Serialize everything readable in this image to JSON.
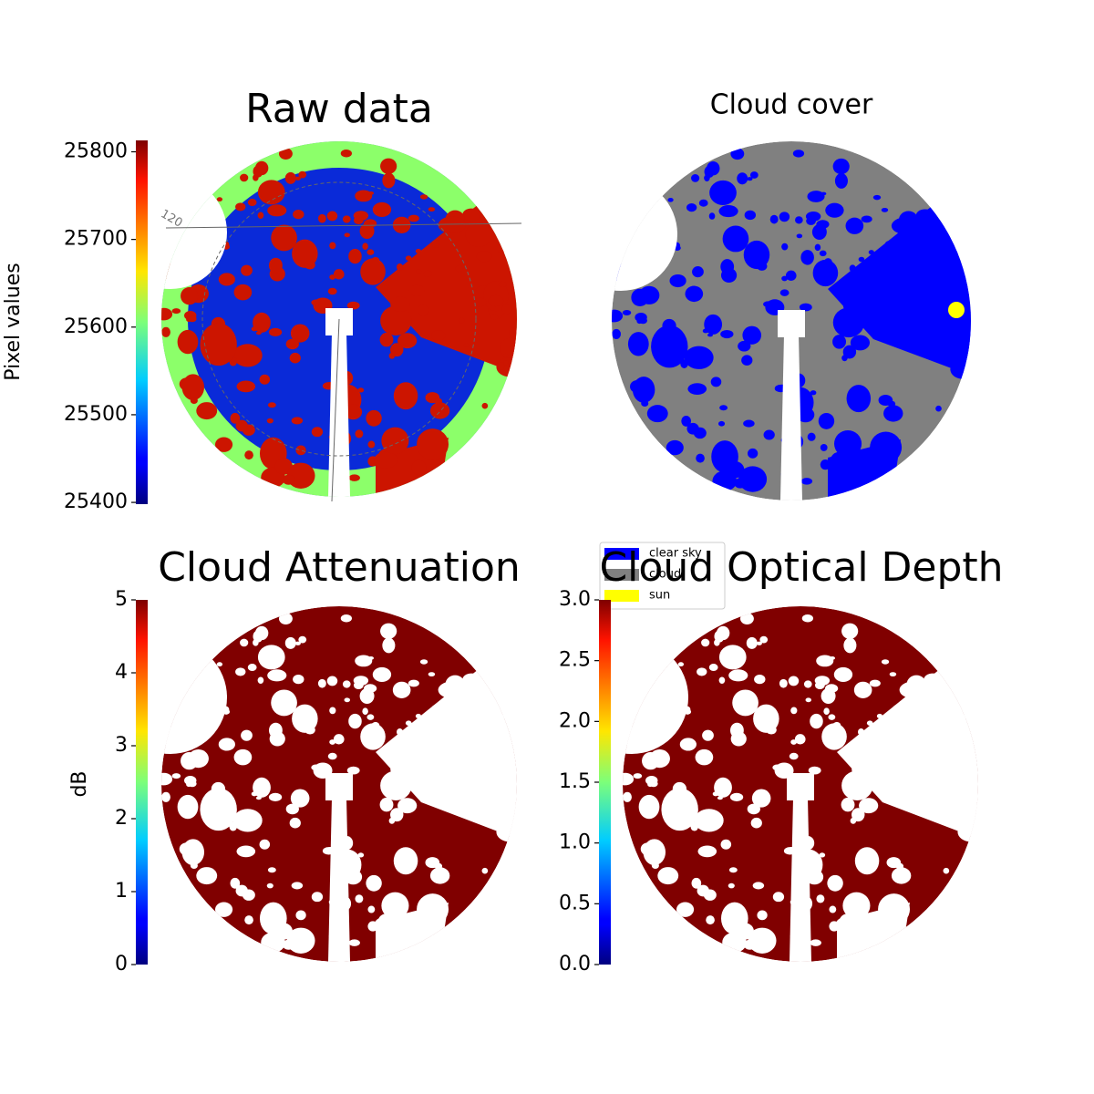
{
  "chart_data": [
    {
      "type": "image",
      "title": "Raw data",
      "ylabel": "Pixel values",
      "colormap": "jet",
      "ylim": [
        25398,
        25813
      ],
      "yticks": [
        25400,
        25500,
        25600,
        25700,
        25800
      ],
      "annotations": [
        "120"
      ]
    },
    {
      "type": "image",
      "title": "Cloud cover",
      "series": [
        {
          "name": "clear sky",
          "color": "#0000ff"
        },
        {
          "name": "cloud",
          "color": "#808080"
        },
        {
          "name": "sun",
          "color": "#ffff00"
        }
      ]
    },
    {
      "type": "image",
      "title": "Cloud Attenuation",
      "ylabel": "dB",
      "colormap": "jet",
      "ylim": [
        0,
        5
      ],
      "yticks": [
        0,
        1,
        2,
        3,
        4,
        5
      ]
    },
    {
      "type": "image",
      "title": "Cloud Optical Depth",
      "colormap": "jet",
      "ylim": [
        0,
        3
      ],
      "yticks": [
        {
          "value": 0,
          "label": "0.0"
        },
        0.5,
        {
          "value": 1,
          "label": "1.0"
        },
        1.5,
        {
          "value": 2,
          "label": "2.0"
        },
        2.5,
        {
          "value": 3,
          "label": "3.0"
        }
      ]
    }
  ]
}
